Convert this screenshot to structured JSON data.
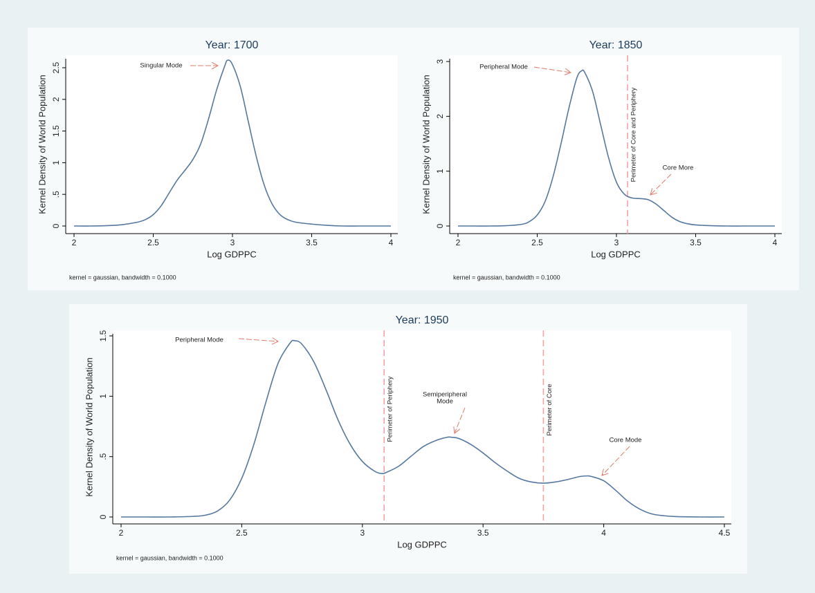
{
  "chart_data": [
    {
      "type": "line",
      "title": "Year: 1700",
      "xlabel": "Log GDPPC",
      "ylabel": "Kernel Density of World Population",
      "note": "kernel = gaussian, bandwidth = 0.1000",
      "color": "#54779f",
      "x": [
        2.0,
        2.1,
        2.2,
        2.3,
        2.4,
        2.45,
        2.5,
        2.55,
        2.6,
        2.65,
        2.7,
        2.75,
        2.8,
        2.85,
        2.9,
        2.95,
        2.97,
        3.0,
        3.05,
        3.1,
        3.15,
        3.2,
        3.25,
        3.3,
        3.35,
        3.4,
        3.5,
        3.6,
        3.7,
        3.8,
        3.9,
        4.0
      ],
      "values": [
        0,
        0,
        0.005,
        0.02,
        0.06,
        0.1,
        0.18,
        0.32,
        0.52,
        0.72,
        0.88,
        1.05,
        1.3,
        1.7,
        2.15,
        2.52,
        2.62,
        2.55,
        2.2,
        1.65,
        1.1,
        0.65,
        0.35,
        0.18,
        0.1,
        0.06,
        0.03,
        0.01,
        0,
        0,
        0,
        0
      ],
      "xlim": [
        2,
        4
      ],
      "ylim": [
        0,
        2.62
      ],
      "xticks": [
        2,
        2.5,
        3,
        3.5,
        4
      ],
      "yticks": [
        0,
        {
          "value": 0.5,
          "label": ".5"
        },
        1,
        1.5,
        2,
        2.5
      ],
      "reference_lines": [],
      "ref_color": "#f4a3a3",
      "annotations": [
        {
          "lines": [
            "Singular Mode"
          ]
        }
      ]
    },
    {
      "type": "line",
      "title": "Year: 1850",
      "xlabel": "Log GDPPC",
      "ylabel": "Kernel Density of World Population",
      "note": "kernel = gaussian, bandwidth = 0.1000",
      "color": "#54779f",
      "x": [
        2.0,
        2.1,
        2.2,
        2.3,
        2.4,
        2.45,
        2.5,
        2.55,
        2.6,
        2.65,
        2.7,
        2.75,
        2.78,
        2.8,
        2.85,
        2.9,
        2.95,
        3.0,
        3.05,
        3.1,
        3.15,
        3.2,
        3.25,
        3.3,
        3.35,
        3.4,
        3.45,
        3.5,
        3.6,
        3.7,
        3.8,
        3.9,
        4.0
      ],
      "values": [
        0,
        0,
        0,
        0.005,
        0.03,
        0.08,
        0.2,
        0.45,
        0.9,
        1.5,
        2.15,
        2.7,
        2.83,
        2.8,
        2.45,
        1.85,
        1.25,
        0.8,
        0.58,
        0.51,
        0.5,
        0.48,
        0.4,
        0.28,
        0.16,
        0.08,
        0.04,
        0.02,
        0.005,
        0,
        0,
        0,
        0
      ],
      "xlim": [
        2,
        4
      ],
      "ylim": [
        0,
        3
      ],
      "xticks": [
        2,
        2.5,
        3,
        3.5,
        4
      ],
      "yticks": [
        0,
        1,
        2,
        3
      ],
      "reference_lines": [
        {
          "value": 3.07,
          "label": "Perimeter of Core and Periphery"
        }
      ],
      "ref_color": "#f4a3a3",
      "annotations": [
        {
          "lines": [
            "Peripheral Mode"
          ]
        },
        {
          "lines": [
            "Core More"
          ]
        }
      ]
    },
    {
      "type": "line",
      "title": "Year: 1950",
      "xlabel": "Log GDPPC",
      "ylabel": "Kernel Density of World Population",
      "note": "kernel = gaussian, bandwidth = 0.1000",
      "color": "#54779f",
      "x": [
        2.0,
        2.1,
        2.2,
        2.3,
        2.35,
        2.4,
        2.45,
        2.5,
        2.55,
        2.6,
        2.65,
        2.7,
        2.72,
        2.75,
        2.8,
        2.85,
        2.9,
        2.95,
        3.0,
        3.05,
        3.08,
        3.1,
        3.15,
        3.2,
        3.25,
        3.3,
        3.35,
        3.37,
        3.4,
        3.45,
        3.5,
        3.55,
        3.6,
        3.65,
        3.7,
        3.75,
        3.8,
        3.85,
        3.9,
        3.93,
        3.95,
        4.0,
        4.05,
        4.1,
        4.15,
        4.2,
        4.25,
        4.3,
        4.4,
        4.5
      ],
      "values": [
        0,
        0,
        0,
        0.005,
        0.015,
        0.05,
        0.14,
        0.32,
        0.6,
        0.95,
        1.27,
        1.44,
        1.46,
        1.43,
        1.28,
        1.05,
        0.8,
        0.6,
        0.46,
        0.38,
        0.36,
        0.37,
        0.42,
        0.5,
        0.58,
        0.63,
        0.66,
        0.66,
        0.65,
        0.6,
        0.53,
        0.45,
        0.38,
        0.32,
        0.29,
        0.28,
        0.29,
        0.31,
        0.335,
        0.34,
        0.335,
        0.3,
        0.22,
        0.13,
        0.065,
        0.025,
        0.01,
        0.003,
        0,
        0
      ],
      "xlim": [
        2,
        4.5
      ],
      "ylim": [
        0,
        1.5
      ],
      "xticks": [
        2,
        2.5,
        3,
        3.5,
        4,
        4.5
      ],
      "yticks": [
        0,
        {
          "value": 0.5,
          "label": ".5"
        },
        1,
        1.5
      ],
      "reference_lines": [
        {
          "value": 3.09,
          "label": "Perimeter of Periphery"
        },
        {
          "value": 3.75,
          "label": "Perimeter of Core"
        }
      ],
      "ref_color": "#f4a3a3",
      "annotations": [
        {
          "lines": [
            "Peripheral Mode"
          ]
        },
        {
          "lines": [
            "Semiperipheral",
            "Mode"
          ]
        },
        {
          "lines": [
            "Core Mode"
          ]
        }
      ]
    }
  ]
}
